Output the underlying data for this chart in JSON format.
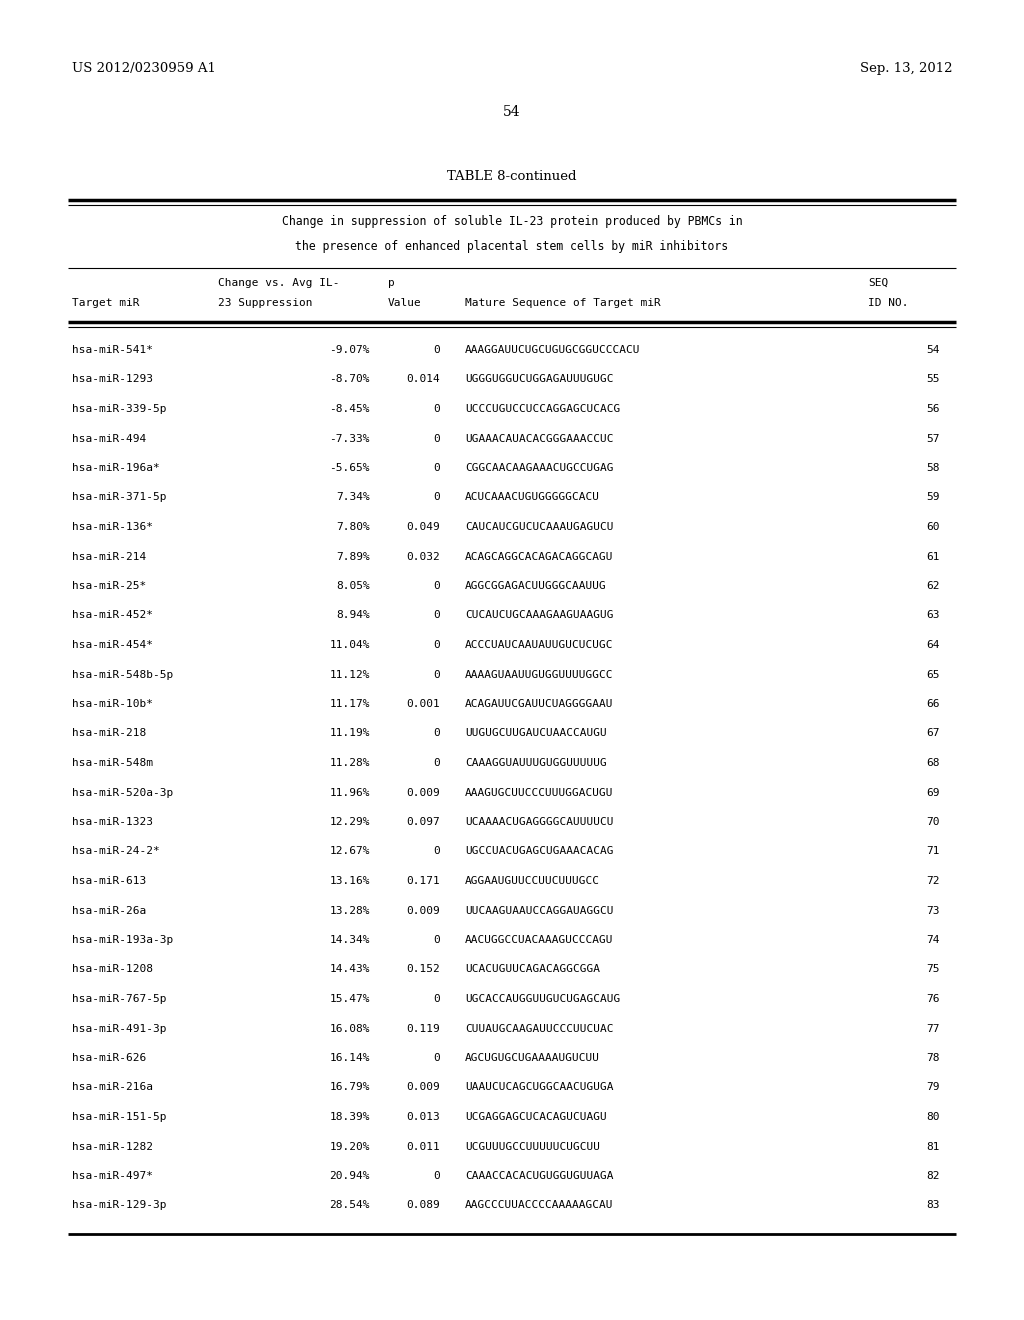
{
  "header_left": "US 2012/0230959 A1",
  "header_right": "Sep. 13, 2012",
  "page_number": "54",
  "table_title": "TABLE 8-continued",
  "table_subtitle_line1": "Change in suppression of soluble IL-23 protein produced by PBMCs in",
  "table_subtitle_line2": "the presence of enhanced placental stem cells by miR inhibitors",
  "rows": [
    [
      "hsa-miR-541*",
      "-9.07%",
      "0",
      "AAAGGAUUCUGCUGUGCGGUCCCACU",
      "54"
    ],
    [
      "hsa-miR-1293",
      "-8.70%",
      "0.014",
      "UGGGUGGUCUGGAGAUUUGUGC",
      "55"
    ],
    [
      "hsa-miR-339-5p",
      "-8.45%",
      "0",
      "UCCCUGUCCUCCAGGAGCUCACG",
      "56"
    ],
    [
      "hsa-miR-494",
      "-7.33%",
      "0",
      "UGAAACAUACACGGGAAACCUC",
      "57"
    ],
    [
      "hsa-miR-196a*",
      "-5.65%",
      "0",
      "CGGCAACAAGAAACUGCCUGAG",
      "58"
    ],
    [
      "hsa-miR-371-5p",
      "7.34%",
      "0",
      "ACUCAAACUGUGGGGGCACU",
      "59"
    ],
    [
      "hsa-miR-136*",
      "7.80%",
      "0.049",
      "CAUCAUCGUCUCAAAUGAGUCU",
      "60"
    ],
    [
      "hsa-miR-214",
      "7.89%",
      "0.032",
      "ACAGCAGGCACAGACAGGCAGU",
      "61"
    ],
    [
      "hsa-miR-25*",
      "8.05%",
      "0",
      "AGGCGGAGACUUGGGCAAUUG",
      "62"
    ],
    [
      "hsa-miR-452*",
      "8.94%",
      "0",
      "CUCAUCUGCAAAGAAGUAAGUG",
      "63"
    ],
    [
      "hsa-miR-454*",
      "11.04%",
      "0",
      "ACCCUAUCAAUAUUGUCUCUGC",
      "64"
    ],
    [
      "hsa-miR-548b-5p",
      "11.12%",
      "0",
      "AAAAGUAAUUGUGGUUUUGGCC",
      "65"
    ],
    [
      "hsa-miR-10b*",
      "11.17%",
      "0.001",
      "ACAGAUUCGAUUCUAGGGGAAU",
      "66"
    ],
    [
      "hsa-miR-218",
      "11.19%",
      "0",
      "UUGUGCUUGAUCUAACCAUGU",
      "67"
    ],
    [
      "hsa-miR-548m",
      "11.28%",
      "0",
      "CAAAGGUAUUUGUGGUUUUUG",
      "68"
    ],
    [
      "hsa-miR-520a-3p",
      "11.96%",
      "0.009",
      "AAAGUGCUUCCCUUUGGACUGU",
      "69"
    ],
    [
      "hsa-miR-1323",
      "12.29%",
      "0.097",
      "UCAAAACUGAGGGGCAUUUUCU",
      "70"
    ],
    [
      "hsa-miR-24-2*",
      "12.67%",
      "0",
      "UGCCUACUGAGCUGAAACACAG",
      "71"
    ],
    [
      "hsa-miR-613",
      "13.16%",
      "0.171",
      "AGGAAUGUUCCUUCUUUGCC",
      "72"
    ],
    [
      "hsa-miR-26a",
      "13.28%",
      "0.009",
      "UUCAAGUAAUCCAGGAUAGGCU",
      "73"
    ],
    [
      "hsa-miR-193a-3p",
      "14.34%",
      "0",
      "AACUGGCCUACAAAGUCCCAGU",
      "74"
    ],
    [
      "hsa-miR-1208",
      "14.43%",
      "0.152",
      "UCACUGUUCAGACAGGCGGA",
      "75"
    ],
    [
      "hsa-miR-767-5p",
      "15.47%",
      "0",
      "UGCACCAUGGUUGUCUGAGCAUG",
      "76"
    ],
    [
      "hsa-miR-491-3p",
      "16.08%",
      "0.119",
      "CUUAUGCAAGAUUCCCUUCUAC",
      "77"
    ],
    [
      "hsa-miR-626",
      "16.14%",
      "0",
      "AGCUGUGCUGAAAAUGUCUU",
      "78"
    ],
    [
      "hsa-miR-216a",
      "16.79%",
      "0.009",
      "UAAUCUCAGCUGGCAACUGUGA",
      "79"
    ],
    [
      "hsa-miR-151-5p",
      "18.39%",
      "0.013",
      "UCGAGGAGCUCACAGUCUAGU",
      "80"
    ],
    [
      "hsa-miR-1282",
      "19.20%",
      "0.011",
      "UCGUUUGCCUUUUUCUGCUU",
      "81"
    ],
    [
      "hsa-miR-497*",
      "20.94%",
      "0",
      "CAAACCACACUGUGGUGUUAGA",
      "82"
    ],
    [
      "hsa-miR-129-3p",
      "28.54%",
      "0.089",
      "AAGCCCUUACCCCAAAAAGCAU",
      "83"
    ]
  ],
  "bg_color": "#ffffff",
  "text_color": "#000000"
}
